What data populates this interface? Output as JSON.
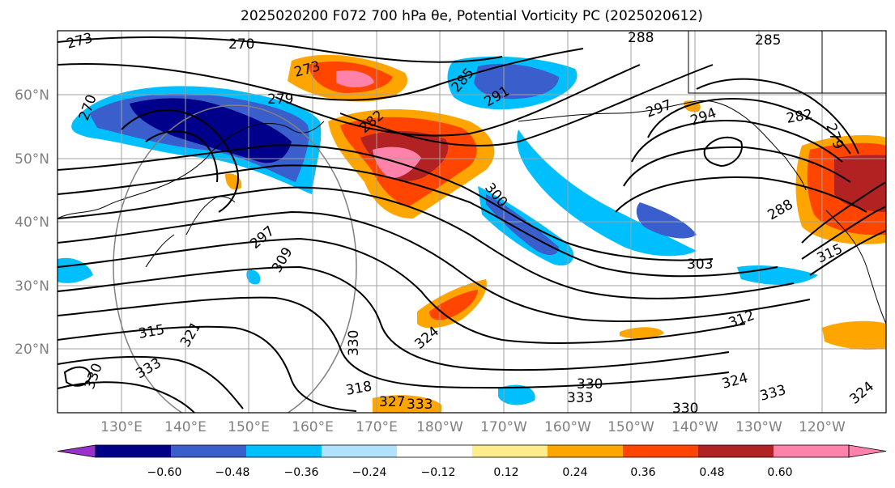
{
  "title": "2025020200 F072 700 hPa θe, Potential Vorticity PC (2025020612)",
  "lat_labels": [
    "60°N",
    "50°N",
    "40°N",
    "30°N",
    "20°N"
  ],
  "lon_labels": [
    "130°E",
    "140°E",
    "150°E",
    "160°E",
    "170°E",
    "180°W",
    "170°W",
    "160°W",
    "150°W",
    "140°W",
    "130°W",
    "120°W"
  ],
  "colorbar": {
    "ticks": [
      "−0.60",
      "−0.48",
      "−0.36",
      "−0.24",
      "−0.12",
      "0.12",
      "0.24",
      "0.36",
      "0.48",
      "0.60"
    ],
    "colors": [
      "#9932cc",
      "#00008b",
      "#3a5fcd",
      "#00bfff",
      "#b0e2ff",
      "#ffffff",
      "#ffec8b",
      "#ffa500",
      "#ff4500",
      "#b22222",
      "#ff82ab",
      "#ff82ab"
    ]
  },
  "contour_labels": [
    "273",
    "270",
    "273",
    "279",
    "285",
    "291",
    "288",
    "285",
    "297",
    "294",
    "282",
    "279",
    "270",
    "282",
    "300",
    "288",
    "297",
    "309",
    "303",
    "315",
    "315",
    "312",
    "321",
    "330",
    "324",
    "318",
    "330",
    "324",
    "333",
    "327",
    "330",
    "333",
    "333",
    "333",
    "330",
    "324"
  ]
}
